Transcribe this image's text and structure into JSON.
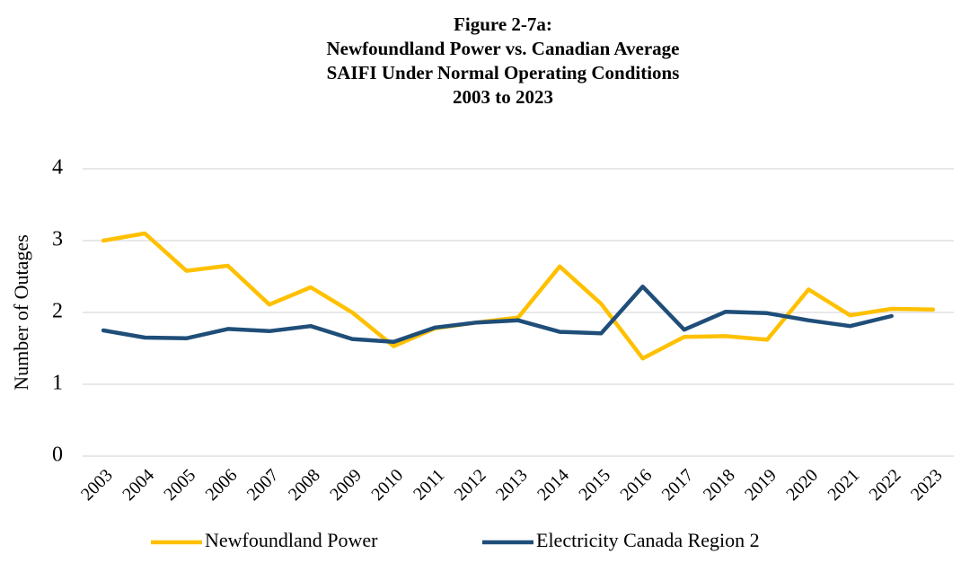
{
  "chart_data": {
    "type": "line",
    "title": [
      "Figure 2-7a:",
      "Newfoundland Power vs. Canadian Average",
      "SAIFI Under Normal Operating Conditions",
      "2003 to 2023"
    ],
    "y_label": "Number of Outages",
    "categories": [
      "2003",
      "2004",
      "2005",
      "2006",
      "2007",
      "2008",
      "2009",
      "2010",
      "2011",
      "2012",
      "2013",
      "2014",
      "2015",
      "2016",
      "2017",
      "2018",
      "2019",
      "2020",
      "2021",
      "2022",
      "2023"
    ],
    "series": [
      {
        "name": "Newfoundland Power",
        "color": "#ffc000",
        "values": [
          3.0,
          3.1,
          2.58,
          2.65,
          2.11,
          2.35,
          2.0,
          1.53,
          1.78,
          1.86,
          1.93,
          2.64,
          2.12,
          1.36,
          1.66,
          1.67,
          1.62,
          2.32,
          1.96,
          2.05,
          2.04
        ]
      },
      {
        "name": "Electricity Canada Region 2",
        "color": "#1f4e79",
        "values": [
          1.75,
          1.65,
          1.64,
          1.77,
          1.74,
          1.81,
          1.63,
          1.59,
          1.79,
          1.86,
          1.89,
          1.73,
          1.71,
          2.36,
          1.76,
          2.01,
          1.99,
          1.89,
          1.81,
          1.95,
          null
        ]
      }
    ],
    "ylim": [
      0,
      4
    ],
    "yticks": [
      0,
      1,
      2,
      3,
      4
    ],
    "grid": true,
    "legend": "bottom"
  }
}
